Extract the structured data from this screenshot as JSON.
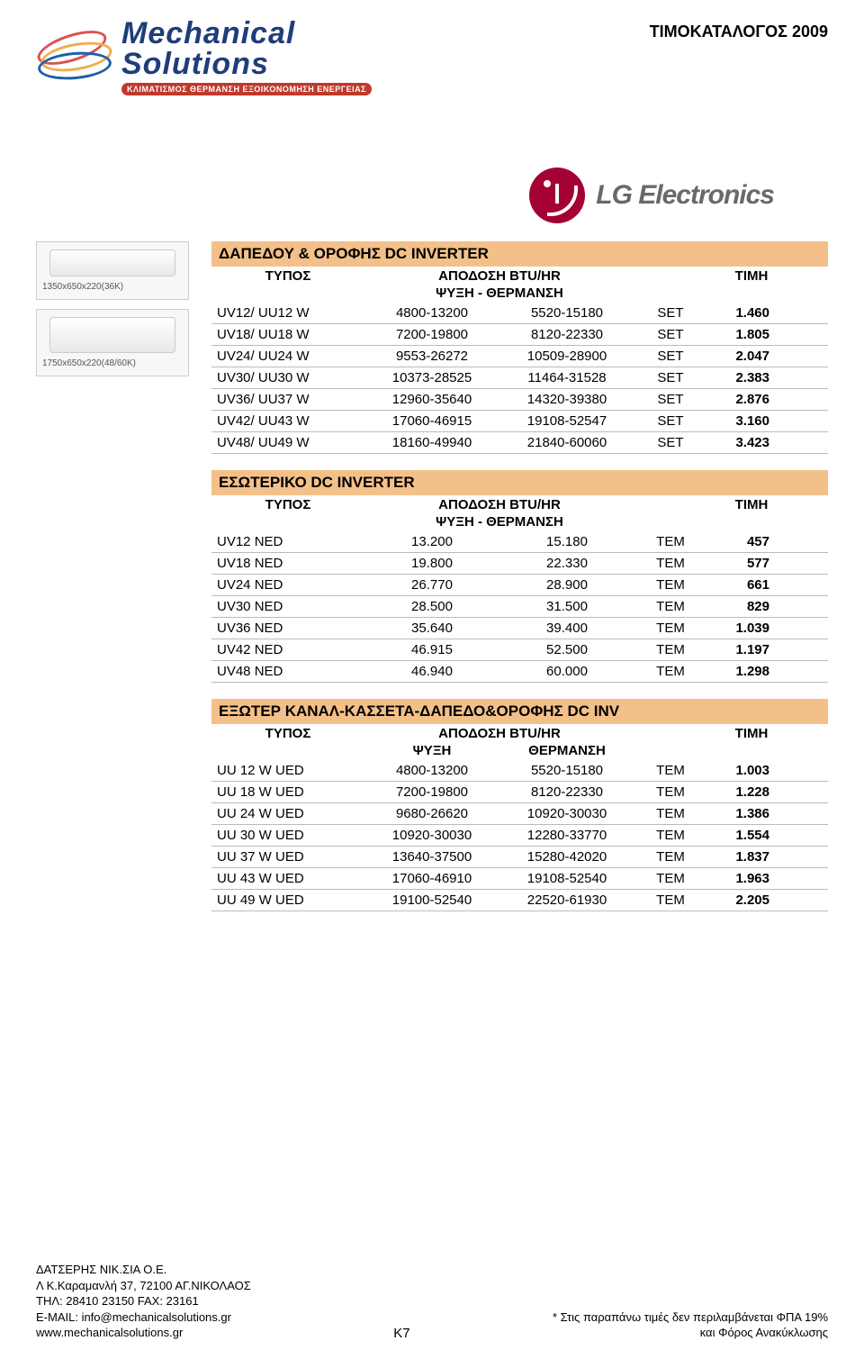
{
  "header": {
    "catalog_title": "ΤΙΜΟΚΑΤΑΛΟΓΟΣ 2009",
    "logo_line1": "Mechanical",
    "logo_line2": "Solutions",
    "tagline": "ΚΛΙΜΑΤΙΣΜΟΣ ΘΕΡΜΑΝΣΗ ΕΞΟΙΚΟΝΟΜΗΣΗ ΕΝΕΡΓΕΙΑΣ",
    "lg_text": "LG Electronics"
  },
  "product_captions": {
    "p1": "1350x650x220(36K)",
    "p2": "1750x650x220(48/60K)"
  },
  "common_headers": {
    "typos": "ΤΥΠΟΣ",
    "apodosi": "ΑΠΟΔΟΣΗ BTU/HR",
    "timi": "ΤΙΜΗ",
    "psyxi_therm": "ΨΥΞΗ - ΘΕΡΜΑΝΣΗ",
    "psyxi": "ΨΥΞΗ",
    "thermansi": "ΘΕΡΜΑΝΣΗ"
  },
  "sections": {
    "s1": {
      "title": "ΔΑΠΕΔΟΥ & ΟΡΟΦΗΣ  DC INVERTER",
      "cool_heat_mode": "combined",
      "unit_label": "SET",
      "rows": [
        {
          "model": "UV12/ UU12 W",
          "cool": "4800-13200",
          "heat": "5520-15180",
          "unit": "SET",
          "price": "1.460"
        },
        {
          "model": "UV18/ UU18 W",
          "cool": "7200-19800",
          "heat": "8120-22330",
          "unit": "SET",
          "price": "1.805"
        },
        {
          "model": "UV24/ UU24 W",
          "cool": "9553-26272",
          "heat": "10509-28900",
          "unit": "SET",
          "price": "2.047"
        },
        {
          "model": "UV30/ UU30 W",
          "cool": "10373-28525",
          "heat": "11464-31528",
          "unit": "SET",
          "price": "2.383"
        },
        {
          "model": "UV36/ UU37 W",
          "cool": "12960-35640",
          "heat": "14320-39380",
          "unit": "SET",
          "price": "2.876"
        },
        {
          "model": "UV42/ UU43 W",
          "cool": "17060-46915",
          "heat": "19108-52547",
          "unit": "SET",
          "price": "3.160"
        },
        {
          "model": "UV48/ UU49 W",
          "cool": "18160-49940",
          "heat": "21840-60060",
          "unit": "SET",
          "price": "3.423"
        }
      ]
    },
    "s2": {
      "title": "ΕΣΩΤΕΡΙΚΟ  DC INVERTER",
      "cool_heat_mode": "combined",
      "unit_label": "TEM",
      "rows": [
        {
          "model": "UV12 NED",
          "cool": "13.200",
          "heat": "15.180",
          "unit": "TEM",
          "price": "457"
        },
        {
          "model": "UV18 NED",
          "cool": "19.800",
          "heat": "22.330",
          "unit": "TEM",
          "price": "577"
        },
        {
          "model": "UV24 NED",
          "cool": "26.770",
          "heat": "28.900",
          "unit": "TEM",
          "price": "661"
        },
        {
          "model": "UV30 NED",
          "cool": "28.500",
          "heat": "31.500",
          "unit": "TEM",
          "price": "829"
        },
        {
          "model": "UV36 NED",
          "cool": "35.640",
          "heat": "39.400",
          "unit": "TEM",
          "price": "1.039"
        },
        {
          "model": "UV42 NED",
          "cool": "46.915",
          "heat": "52.500",
          "unit": "TEM",
          "price": "1.197"
        },
        {
          "model": "UV48 NED",
          "cool": "46.940",
          "heat": "60.000",
          "unit": "TEM",
          "price": "1.298"
        }
      ]
    },
    "s3": {
      "title": "ΕΞΩΤΕΡ ΚΑΝΑΛ-ΚΑΣΣΕΤΑ-ΔΑΠΕΔΟ&ΟΡΟΦΗΣ DC INV",
      "cool_heat_mode": "split",
      "unit_label": "TEM",
      "rows": [
        {
          "model": "UU 12 W UED",
          "cool": "4800-13200",
          "heat": "5520-15180",
          "unit": "TEM",
          "price": "1.003"
        },
        {
          "model": "UU 18 W UED",
          "cool": "7200-19800",
          "heat": "8120-22330",
          "unit": "TEM",
          "price": "1.228"
        },
        {
          "model": "UU 24 W UED",
          "cool": "9680-26620",
          "heat": "10920-30030",
          "unit": "TEM",
          "price": "1.386"
        },
        {
          "model": "UU 30 W UED",
          "cool": "10920-30030",
          "heat": "12280-33770",
          "unit": "TEM",
          "price": "1.554"
        },
        {
          "model": "UU 37 W UED",
          "cool": "13640-37500",
          "heat": "15280-42020",
          "unit": "TEM",
          "price": "1.837"
        },
        {
          "model": "UU 43 W UED",
          "cool": "17060-46910",
          "heat": "19108-52540",
          "unit": "TEM",
          "price": "1.963"
        },
        {
          "model": "UU 49 W UED",
          "cool": "19100-52540",
          "heat": "22520-61930",
          "unit": "TEM",
          "price": "2.205"
        }
      ]
    }
  },
  "footer": {
    "company": "ΔΑΤΣΕΡΗΣ ΝΙΚ.ΣΙΑ Ο.Ε.",
    "address": "Λ Κ.Καραμανλή 37, 72100 ΑΓ.ΝΙΚΟΛΑΟΣ",
    "tel": "ΤΗΛ: 28410 23150 FAX: 23161",
    "email": "E-MAIL: info@mechanicalsolutions.gr",
    "web": "www.mechanicalsolutions.gr",
    "page": "K7",
    "note1": "* Στις παραπάνω τιμές δεν περιλαμβάνεται ΦΠΑ 19%",
    "note2": "και Φόρος Ανακύκλωσης"
  }
}
